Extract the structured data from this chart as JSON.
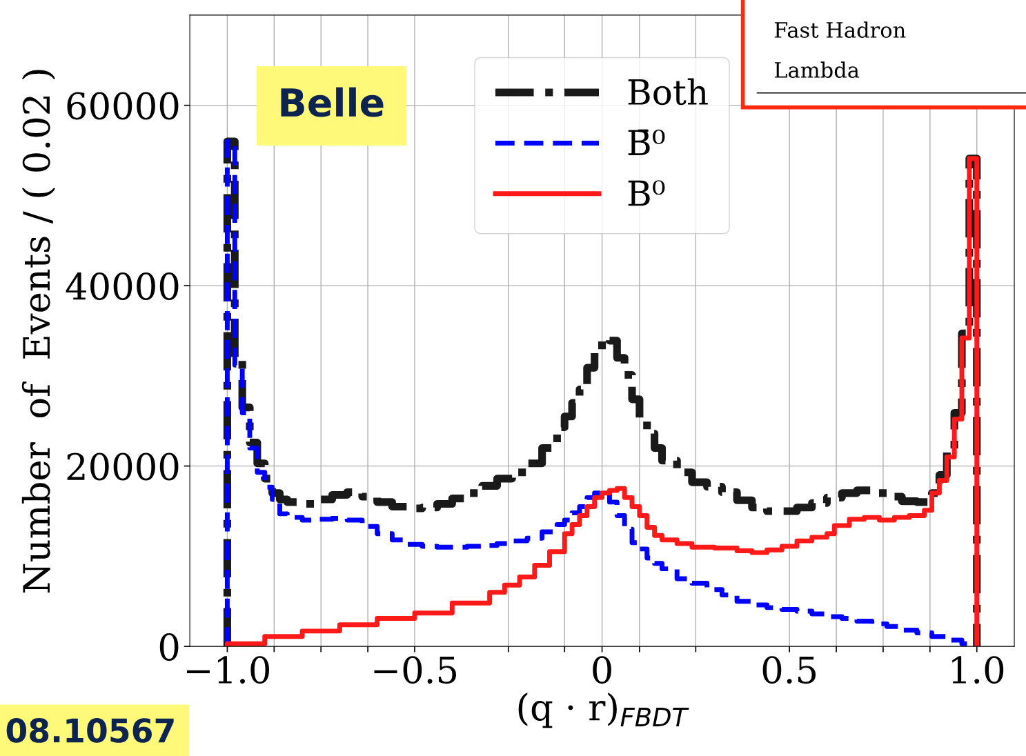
{
  "chart_data": {
    "type": "step",
    "xlabel": "(q · r)$_{FBDT}$",
    "ylabel": "Number  of  Events / ( 0.02 )",
    "annotations": [
      "Belle",
      "Fast Hadron",
      "Lambda",
      "08.10567"
    ],
    "xlim": [
      -1.1,
      1.1
    ],
    "ylim": [
      0,
      70000
    ],
    "xticks": [
      {
        "value": -1.0,
        "label": "−1.0"
      },
      {
        "value": -0.875,
        "label": null
      },
      {
        "value": -0.75,
        "label": null
      },
      {
        "value": -0.625,
        "label": null
      },
      {
        "value": -0.5,
        "label": "−0.5"
      },
      {
        "value": -0.25,
        "label": null
      },
      {
        "value": -0.1,
        "label": null
      },
      0,
      {
        "value": 0.1,
        "label": null
      },
      {
        "value": 0.25,
        "label": null
      },
      0.5,
      {
        "value": 0.625,
        "label": null
      },
      {
        "value": 0.75,
        "label": null
      },
      {
        "value": 0.875,
        "label": null
      },
      {
        "value": 1.0,
        "label": "1.0"
      }
    ],
    "yticks": [
      0,
      20000,
      40000,
      60000
    ],
    "grid": true,
    "legend": "top",
    "series": [
      {
        "name": "Both",
        "color": "#1a1a1a",
        "line_style": "dashdot",
        "x": [
          -1.0,
          -1.0,
          -0.98,
          -0.96,
          -0.94,
          -0.92,
          -0.9,
          -0.88,
          -0.86,
          -0.84,
          -0.8,
          -0.76,
          -0.72,
          -0.68,
          -0.64,
          -0.6,
          -0.56,
          -0.52,
          -0.48,
          -0.44,
          -0.4,
          -0.36,
          -0.32,
          -0.28,
          -0.24,
          -0.2,
          -0.16,
          -0.12,
          -0.1,
          -0.08,
          -0.06,
          -0.04,
          -0.02,
          0.0,
          0.02,
          0.04,
          0.06,
          0.08,
          0.1,
          0.12,
          0.14,
          0.16,
          0.2,
          0.24,
          0.28,
          0.32,
          0.36,
          0.4,
          0.44,
          0.48,
          0.52,
          0.56,
          0.6,
          0.64,
          0.68,
          0.72,
          0.76,
          0.8,
          0.84,
          0.88,
          0.9,
          0.92,
          0.94,
          0.96,
          0.98,
          1.0
        ],
        "values": [
          0,
          56000,
          32000,
          26500,
          22600,
          20300,
          18600,
          17000,
          16300,
          16000,
          15800,
          16300,
          16800,
          17100,
          16600,
          16000,
          15500,
          15300,
          15400,
          15800,
          16400,
          17000,
          17800,
          18600,
          19300,
          20300,
          22000,
          24300,
          25500,
          27000,
          28500,
          30900,
          32800,
          34100,
          33900,
          32000,
          30100,
          27400,
          25100,
          23600,
          22000,
          20600,
          19300,
          18200,
          17700,
          17100,
          16200,
          15400,
          15000,
          15000,
          15400,
          15900,
          16500,
          17000,
          17300,
          17000,
          16600,
          16100,
          16000,
          17000,
          19000,
          21900,
          25900,
          34700,
          54100,
          0
        ]
      },
      {
        "name": "B̄⁰",
        "color": "#0000ff",
        "line_style": "dashed",
        "x": [
          -1.0,
          -1.0,
          -0.98,
          -0.96,
          -0.94,
          -0.92,
          -0.9,
          -0.88,
          -0.86,
          -0.84,
          -0.8,
          -0.76,
          -0.72,
          -0.68,
          -0.64,
          -0.6,
          -0.56,
          -0.52,
          -0.48,
          -0.44,
          -0.4,
          -0.36,
          -0.32,
          -0.28,
          -0.24,
          -0.2,
          -0.16,
          -0.12,
          -0.1,
          -0.08,
          -0.06,
          -0.04,
          -0.02,
          0.0,
          0.02,
          0.04,
          0.06,
          0.08,
          0.1,
          0.12,
          0.14,
          0.16,
          0.2,
          0.24,
          0.28,
          0.32,
          0.36,
          0.4,
          0.44,
          0.48,
          0.52,
          0.56,
          0.6,
          0.64,
          0.68,
          0.72,
          0.76,
          0.8,
          0.84,
          0.88,
          0.92,
          0.96,
          0.98,
          1.0
        ],
        "values": [
          0,
          56000,
          31200,
          25900,
          22000,
          19300,
          17650,
          16300,
          14700,
          14300,
          14000,
          14100,
          14200,
          14000,
          13300,
          12500,
          11800,
          11300,
          11100,
          11000,
          11000,
          11100,
          11200,
          11400,
          11700,
          12000,
          12700,
          13500,
          14000,
          14800,
          15500,
          16500,
          17000,
          17000,
          16000,
          14500,
          13000,
          11500,
          10800,
          9800,
          9200,
          8600,
          7500,
          7000,
          6300,
          5700,
          5000,
          4600,
          4300,
          4100,
          3900,
          3600,
          3300,
          3100,
          2800,
          2500,
          2200,
          1800,
          1500,
          1100,
          700,
          300,
          300,
          0
        ]
      },
      {
        "name": "B⁰",
        "color": "#ff1a1a",
        "line_style": "solid",
        "x": [
          -1.0,
          -1.0,
          -0.9,
          -0.8,
          -0.7,
          -0.6,
          -0.5,
          -0.4,
          -0.3,
          -0.26,
          -0.22,
          -0.18,
          -0.14,
          -0.1,
          -0.08,
          -0.06,
          -0.04,
          -0.02,
          0.0,
          0.02,
          0.04,
          0.06,
          0.08,
          0.1,
          0.12,
          0.14,
          0.16,
          0.2,
          0.24,
          0.3,
          0.36,
          0.4,
          0.44,
          0.48,
          0.52,
          0.56,
          0.6,
          0.62,
          0.66,
          0.7,
          0.74,
          0.78,
          0.82,
          0.86,
          0.88,
          0.9,
          0.92,
          0.94,
          0.96,
          0.98,
          1.0
        ],
        "values": [
          0,
          300,
          1100,
          1700,
          2400,
          3100,
          3700,
          4800,
          6000,
          6800,
          7700,
          9000,
          10500,
          12500,
          13500,
          14500,
          15500,
          16500,
          17000,
          17300,
          17500,
          16500,
          15500,
          14500,
          13200,
          12300,
          11800,
          11400,
          11000,
          10900,
          10600,
          10400,
          10700,
          11100,
          11700,
          12100,
          12500,
          13400,
          14100,
          14300,
          14000,
          14300,
          14500,
          15100,
          17000,
          18400,
          21000,
          25200,
          34200,
          54100,
          0
        ]
      }
    ]
  }
}
